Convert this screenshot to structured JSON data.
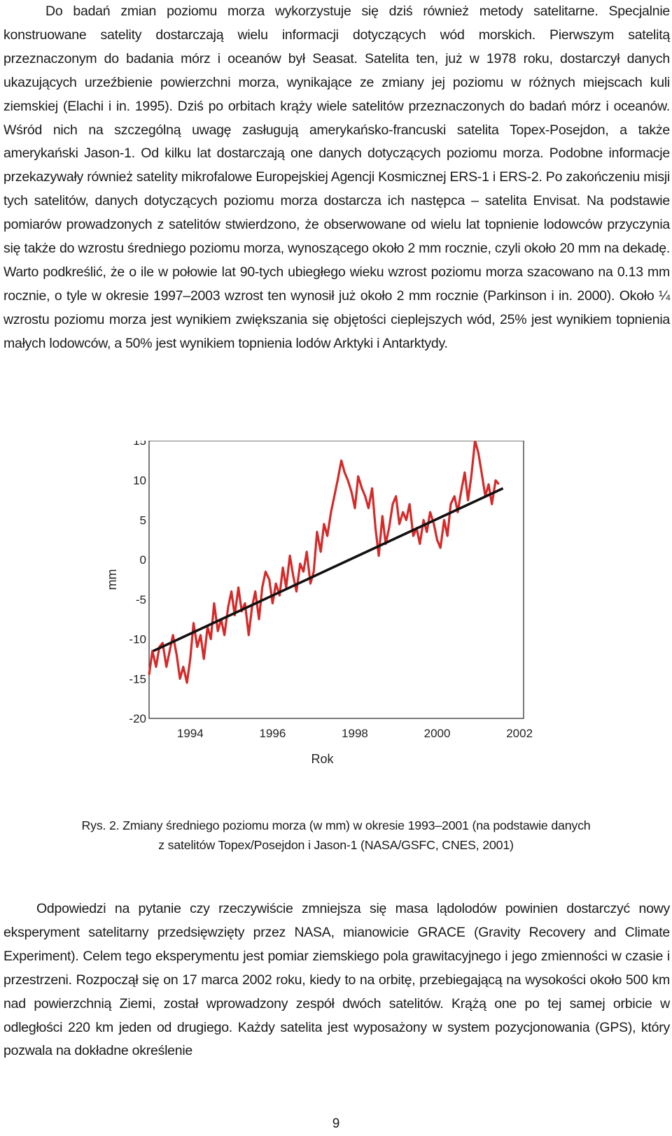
{
  "paragraphs": {
    "p1": "Do badań zmian poziomu morza wykorzystuje się dziś również metody satelitarne. Specjalnie konstruowane satelity dostarczają wielu informacji dotyczących wód morskich. Pierwszym satelitą przeznaczonym do badania mórz i oceanów był Seasat. Satelita ten, już w 1978 roku, dostarczył danych ukazujących urzeźbienie powierzchni morza, wynikające ze zmiany jej poziomu w różnych miejscach kuli ziemskiej (Elachi i in. 1995). Dziś po orbitach krąży wiele satelitów przeznaczonych do badań mórz i oceanów. Wśród nich na szczególną uwagę zasługują amerykańsko-francuski satelita Topex-Posejdon, a także amerykański Jason-1. Od kilku lat dostarczają one danych dotyczących poziomu morza. Podobne informacje przekazywały również satelity mikrofalowe Europejskiej Agencji Kosmicznej ERS-1 i ERS-2. Po zakończeniu misji tych satelitów, danych dotyczących poziomu morza dostarcza ich następca – satelita Envisat. Na podstawie pomiarów prowadzonych z satelitów stwierdzono, że obserwowane od wielu lat topnienie lodowców przyczynia się także do wzrostu średniego poziomu morza, wynoszącego około 2 mm rocznie, czyli około 20 mm na dekadę. Warto podkreślić, że o ile w połowie lat 90-tych ubiegłego wieku wzrost poziomu morza szacowano na 0.13 mm rocznie, o tyle w okresie 1997–2003 wzrost ten wynosił już około 2 mm rocznie (Parkinson i in. 2000). Około ¼ wzrostu poziomu morza jest wynikiem zwiększania się objętości cieplejszych wód, 25% jest wynikiem topnienia małych lodowców, a 50% jest wynikiem topnienia lodów Arktyki i Antarktydy.",
    "p2": "Odpowiedzi na pytanie czy rzeczywiście zmniejsza się masa lądolodów powinien dostarczyć nowy eksperyment satelitarny przedsięwzięty przez NASA, mianowicie GRACE (Gravity Recovery and Climate Experiment). Celem tego eksperymentu jest pomiar ziemskiego pola grawitacyjnego i jego zmienności w czasie i przestrzeni. Rozpoczął się on 17 marca 2002 roku, kiedy to na orbitę, przebiegającą na wysokości około 500 km nad powierzchnią Ziemi, został wprowadzony zespół dwóch satelitów. Krążą one po tej samej orbicie w odległości 220 km jeden od drugiego. Każdy satelita jest wyposażony w system pozycjonowania (GPS), który pozwala na dokładne określenie"
  },
  "caption": {
    "line1": "Rys. 2. Zmiany średniego poziomu morza (w mm) w okresie 1993–2001 (na podstawie danych",
    "line2": "z satelitów Topex/Posejdon i Jason-1 (NASA/GSFC, CNES, 2001)"
  },
  "page_number": "9",
  "chart_data": {
    "type": "line",
    "title": "",
    "xlabel": "Rok",
    "ylabel": "mm",
    "xlim": [
      1993,
      2002.1
    ],
    "ylim": [
      -20,
      15
    ],
    "x_ticks": [
      1994,
      1996,
      1998,
      2000,
      2002
    ],
    "y_ticks": [
      15,
      10,
      5,
      0,
      -5,
      -10,
      -15,
      -20
    ],
    "grid": false,
    "series": [
      {
        "color": "#d42a2a",
        "x": [
          1993.0,
          1993.08,
          1993.17,
          1993.25,
          1993.33,
          1993.42,
          1993.5,
          1993.58,
          1993.67,
          1993.75,
          1993.83,
          1993.92,
          1994.0,
          1994.08,
          1994.17,
          1994.25,
          1994.33,
          1994.42,
          1994.5,
          1994.58,
          1994.67,
          1994.75,
          1994.83,
          1994.92,
          1995.0,
          1995.08,
          1995.17,
          1995.25,
          1995.33,
          1995.42,
          1995.5,
          1995.58,
          1995.67,
          1995.75,
          1995.83,
          1995.92,
          1996.0,
          1996.08,
          1996.17,
          1996.25,
          1996.33,
          1996.42,
          1996.5,
          1996.58,
          1996.67,
          1996.75,
          1996.83,
          1996.92,
          1997.0,
          1997.08,
          1997.17,
          1997.25,
          1997.33,
          1997.42,
          1997.5,
          1997.58,
          1997.67,
          1997.75,
          1997.83,
          1997.92,
          1998.0,
          1998.08,
          1998.17,
          1998.25,
          1998.33,
          1998.42,
          1998.5,
          1998.58,
          1998.67,
          1998.75,
          1998.83,
          1998.92,
          1999.0,
          1999.08,
          1999.17,
          1999.25,
          1999.33,
          1999.42,
          1999.5,
          1999.58,
          1999.67,
          1999.75,
          1999.83,
          1999.92,
          2000.0,
          2000.08,
          2000.17,
          2000.25,
          2000.33,
          2000.42,
          2000.5,
          2000.58,
          2000.67,
          2000.75,
          2000.83,
          2000.92,
          2001.0,
          2001.08,
          2001.17,
          2001.25,
          2001.33,
          2001.42,
          2001.5
        ],
        "values": [
          -14.5,
          -11.5,
          -13.5,
          -11.0,
          -10.5,
          -13.5,
          -11.5,
          -9.5,
          -12.0,
          -15.0,
          -13.5,
          -15.5,
          -12.5,
          -8.0,
          -11.0,
          -9.5,
          -12.5,
          -8.5,
          -10.0,
          -5.5,
          -9.0,
          -7.5,
          -9.5,
          -6.0,
          -4.0,
          -7.0,
          -3.5,
          -6.5,
          -5.5,
          -9.5,
          -6.0,
          -4.0,
          -7.5,
          -3.5,
          -1.5,
          -2.5,
          -5.5,
          -3.0,
          -4.5,
          -1.0,
          -3.5,
          0.5,
          -2.0,
          -4.0,
          -0.5,
          -1.5,
          1.0,
          -3.0,
          -1.5,
          3.5,
          1.0,
          4.5,
          3.0,
          6.0,
          8.0,
          10.0,
          12.5,
          11.0,
          10.0,
          8.5,
          6.5,
          10.5,
          9.0,
          8.0,
          6.5,
          9.0,
          4.0,
          0.5,
          5.5,
          2.0,
          4.0,
          7.0,
          8.0,
          4.5,
          6.0,
          5.0,
          7.0,
          3.0,
          4.0,
          2.0,
          5.0,
          3.5,
          6.0,
          4.5,
          2.5,
          1.5,
          5.0,
          3.0,
          7.0,
          8.0,
          6.0,
          8.5,
          11.0,
          7.5,
          10.5,
          15.0,
          13.5,
          11.0,
          8.0,
          9.5,
          7.0,
          10.0,
          9.5
        ]
      },
      {
        "color": "#111111",
        "x": [
          1993.1,
          2001.6
        ],
        "values": [
          -11.5,
          9.0
        ]
      }
    ]
  }
}
